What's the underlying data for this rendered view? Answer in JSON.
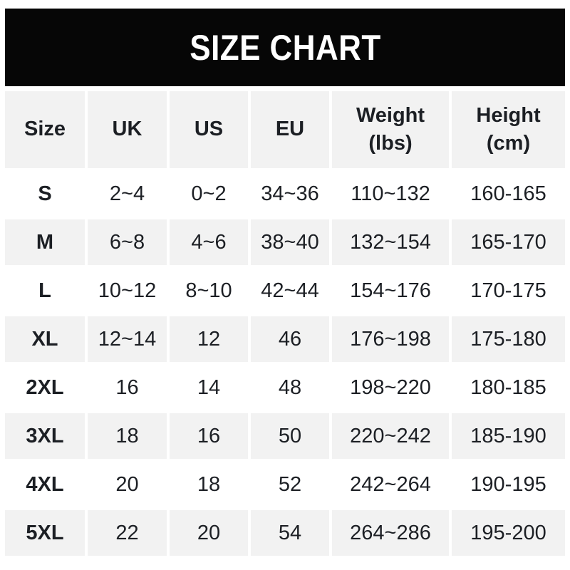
{
  "title": "SIZE CHART",
  "colors": {
    "banner_bg": "#060606",
    "banner_text": "#ffffff",
    "alt_row_bg": "#f2f2f2",
    "row_bg": "#ffffff",
    "text": "#1c1f24"
  },
  "table": {
    "columns": [
      {
        "key": "size",
        "label": "Size",
        "sub": ""
      },
      {
        "key": "uk",
        "label": "UK",
        "sub": ""
      },
      {
        "key": "us",
        "label": "US",
        "sub": ""
      },
      {
        "key": "eu",
        "label": "EU",
        "sub": ""
      },
      {
        "key": "weight",
        "label": "Weight",
        "sub": "(lbs)"
      },
      {
        "key": "height",
        "label": "Height",
        "sub": "(cm)"
      }
    ],
    "rows": [
      {
        "size": "S",
        "uk": "2~4",
        "us": "0~2",
        "eu": "34~36",
        "weight": "110~132",
        "height": "160-165"
      },
      {
        "size": "M",
        "uk": "6~8",
        "us": "4~6",
        "eu": "38~40",
        "weight": "132~154",
        "height": "165-170"
      },
      {
        "size": "L",
        "uk": "10~12",
        "us": "8~10",
        "eu": "42~44",
        "weight": "154~176",
        "height": "170-175"
      },
      {
        "size": "XL",
        "uk": "12~14",
        "us": "12",
        "eu": "46",
        "weight": "176~198",
        "height": "175-180"
      },
      {
        "size": "2XL",
        "uk": "16",
        "us": "14",
        "eu": "48",
        "weight": "198~220",
        "height": "180-185"
      },
      {
        "size": "3XL",
        "uk": "18",
        "us": "16",
        "eu": "50",
        "weight": "220~242",
        "height": "185-190"
      },
      {
        "size": "4XL",
        "uk": "20",
        "us": "18",
        "eu": "52",
        "weight": "242~264",
        "height": "190-195"
      },
      {
        "size": "5XL",
        "uk": "22",
        "us": "20",
        "eu": "54",
        "weight": "264~286",
        "height": "195-200"
      }
    ]
  },
  "chart_data": {
    "type": "table",
    "title": "SIZE CHART",
    "columns": [
      "Size",
      "UK",
      "US",
      "EU",
      "Weight (lbs)",
      "Height (cm)"
    ],
    "rows": [
      [
        "S",
        "2~4",
        "0~2",
        "34~36",
        "110~132",
        "160-165"
      ],
      [
        "M",
        "6~8",
        "4~6",
        "38~40",
        "132~154",
        "165-170"
      ],
      [
        "L",
        "10~12",
        "8~10",
        "42~44",
        "154~176",
        "170-175"
      ],
      [
        "XL",
        "12~14",
        "12",
        "46",
        "176~198",
        "175-180"
      ],
      [
        "2XL",
        "16",
        "14",
        "48",
        "198~220",
        "180-185"
      ],
      [
        "3XL",
        "18",
        "16",
        "50",
        "220~242",
        "185-190"
      ],
      [
        "4XL",
        "20",
        "18",
        "52",
        "242~264",
        "190-195"
      ],
      [
        "5XL",
        "22",
        "20",
        "54",
        "264~286",
        "195-200"
      ]
    ]
  }
}
